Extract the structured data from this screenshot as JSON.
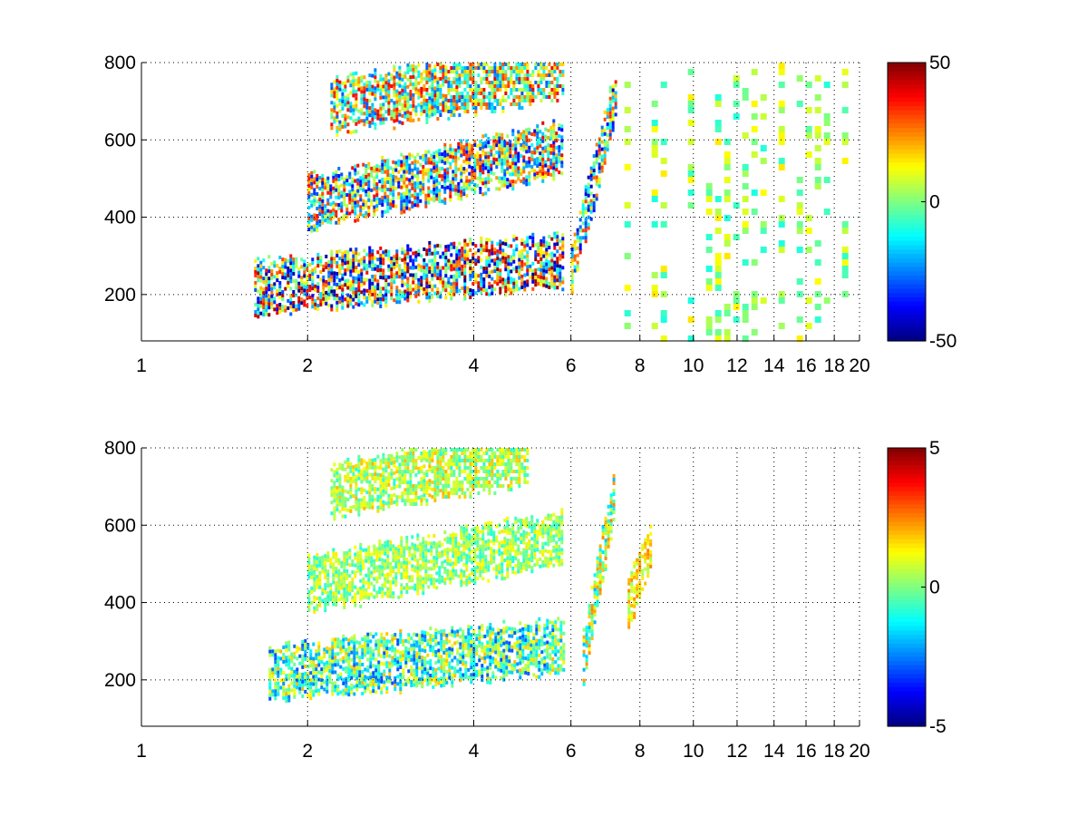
{
  "chart_data": [
    {
      "type": "heatmap",
      "title": "",
      "xlabel": "",
      "ylabel": "",
      "x_ticks": [
        1,
        2,
        4,
        6,
        8,
        10,
        12,
        14,
        16,
        18,
        20
      ],
      "y_ticks": [
        200,
        400,
        600,
        800
      ],
      "xlim": [
        1,
        20
      ],
      "ylim": [
        80,
        800
      ],
      "x_scale": "log2",
      "grid": true,
      "colorbar": {
        "colormap": "jet",
        "range": [
          -50,
          50
        ],
        "tick_values": [
          50,
          0,
          -50
        ],
        "tick_labels": [
          "50",
          "0",
          "-50"
        ]
      },
      "features": [
        {
          "band": "lower",
          "x_range": [
            1.6,
            5.8
          ],
          "y_center_start": 220,
          "y_center_end": 290,
          "values_range": [
            -50,
            50
          ]
        },
        {
          "band": "upper-mid",
          "x_range": [
            2.0,
            5.8
          ],
          "y_center_start": 440,
          "y_center_end": 580,
          "values_range": [
            -40,
            40
          ]
        },
        {
          "band": "upper",
          "x_range": [
            2.2,
            5.8
          ],
          "y_center_start": 690,
          "y_center_end": 780,
          "values_range": [
            -30,
            40
          ]
        },
        {
          "band": "secondary",
          "x_range": [
            6.0,
            7.2
          ],
          "y_center_start": 270,
          "y_center_end": 720,
          "values_range": [
            -45,
            35
          ]
        },
        {
          "band": "scatter",
          "x_range": [
            7.5,
            20
          ],
          "y_range": [
            80,
            800
          ],
          "values_range": [
            -10,
            15
          ]
        }
      ]
    },
    {
      "type": "heatmap",
      "title": "",
      "xlabel": "",
      "ylabel": "",
      "x_ticks": [
        1,
        2,
        4,
        6,
        8,
        10,
        12,
        14,
        16,
        18,
        20
      ],
      "y_ticks": [
        200,
        400,
        600,
        800
      ],
      "xlim": [
        1,
        20
      ],
      "ylim": [
        80,
        800
      ],
      "x_scale": "log2",
      "grid": true,
      "colorbar": {
        "colormap": "jet",
        "range": [
          -5,
          5
        ],
        "tick_values": [
          5,
          0,
          -5
        ],
        "tick_labels": [
          "5",
          "0",
          "-5"
        ]
      },
      "features": [
        {
          "band": "lower",
          "x_range": [
            1.7,
            5.8
          ],
          "y_center_start": 220,
          "y_center_end": 290,
          "values_range": [
            -3,
            2
          ]
        },
        {
          "band": "upper-mid",
          "x_range": [
            2.0,
            5.8
          ],
          "y_center_start": 450,
          "y_center_end": 570,
          "values_range": [
            -1,
            1.5
          ]
        },
        {
          "band": "upper",
          "x_range": [
            2.2,
            5.0
          ],
          "y_center_start": 690,
          "y_center_end": 780,
          "values_range": [
            -1,
            2
          ]
        },
        {
          "band": "secondary",
          "x_range": [
            6.3,
            7.2
          ],
          "y_center_start": 260,
          "y_center_end": 700,
          "values_range": [
            -2,
            2.5
          ]
        },
        {
          "band": "tail",
          "x_range": [
            7.6,
            8.4
          ],
          "y_center_start": 400,
          "y_center_end": 560,
          "values_range": [
            0,
            2.5
          ]
        }
      ]
    }
  ]
}
